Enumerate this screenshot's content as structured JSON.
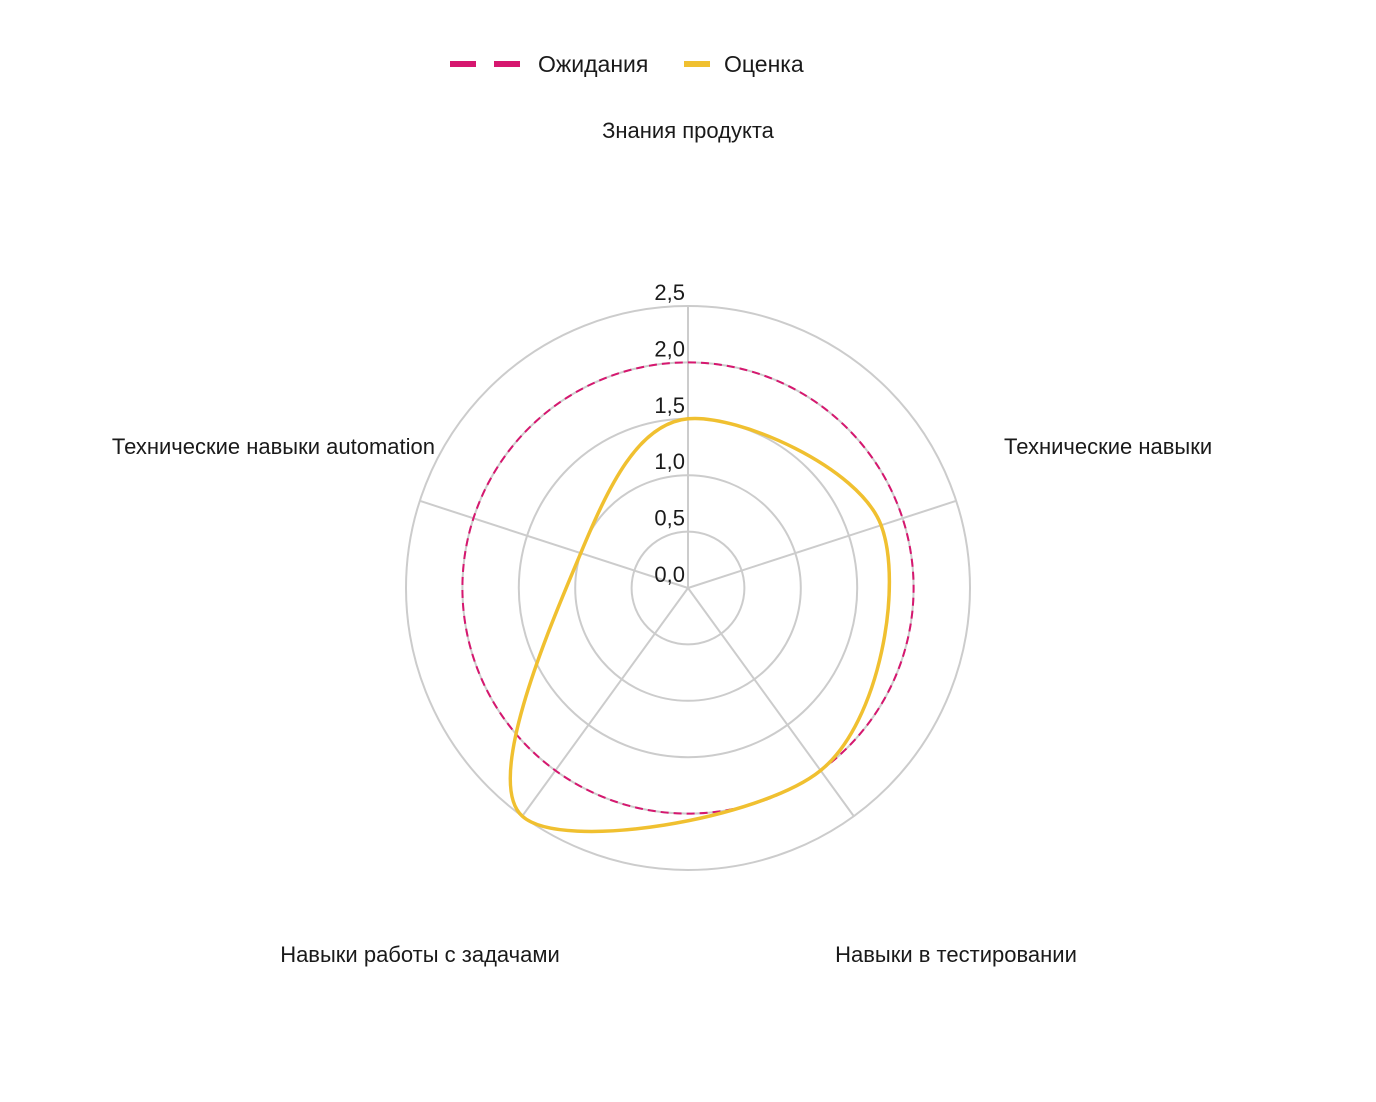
{
  "chart_data": {
    "type": "radar",
    "categories": [
      "Знания продукта",
      "Технические навыки",
      "Навыки в тестировании",
      "Навыки работы с задачами",
      "Технические навыки automation"
    ],
    "series": [
      {
        "name": "Ожидания",
        "values": [
          2.0,
          2.0,
          2.0,
          2.0,
          2.0
        ],
        "color": "#d6176f",
        "line_style": "dashed"
      },
      {
        "name": "Оценка",
        "values": [
          1.5,
          1.8,
          2.0,
          2.5,
          1.0
        ],
        "color": "#f0c030",
        "line_style": "solid"
      }
    ],
    "r_axis": {
      "range": [
        0,
        2.5
      ],
      "ticks": [
        "0,0",
        "0,5",
        "1,0",
        "1,5",
        "2,0",
        "2,5"
      ],
      "tick_values": [
        0,
        0.5,
        1.0,
        1.5,
        2.0,
        2.5
      ]
    },
    "grid": true,
    "legend": "top",
    "grid_color": "#cccccc"
  }
}
